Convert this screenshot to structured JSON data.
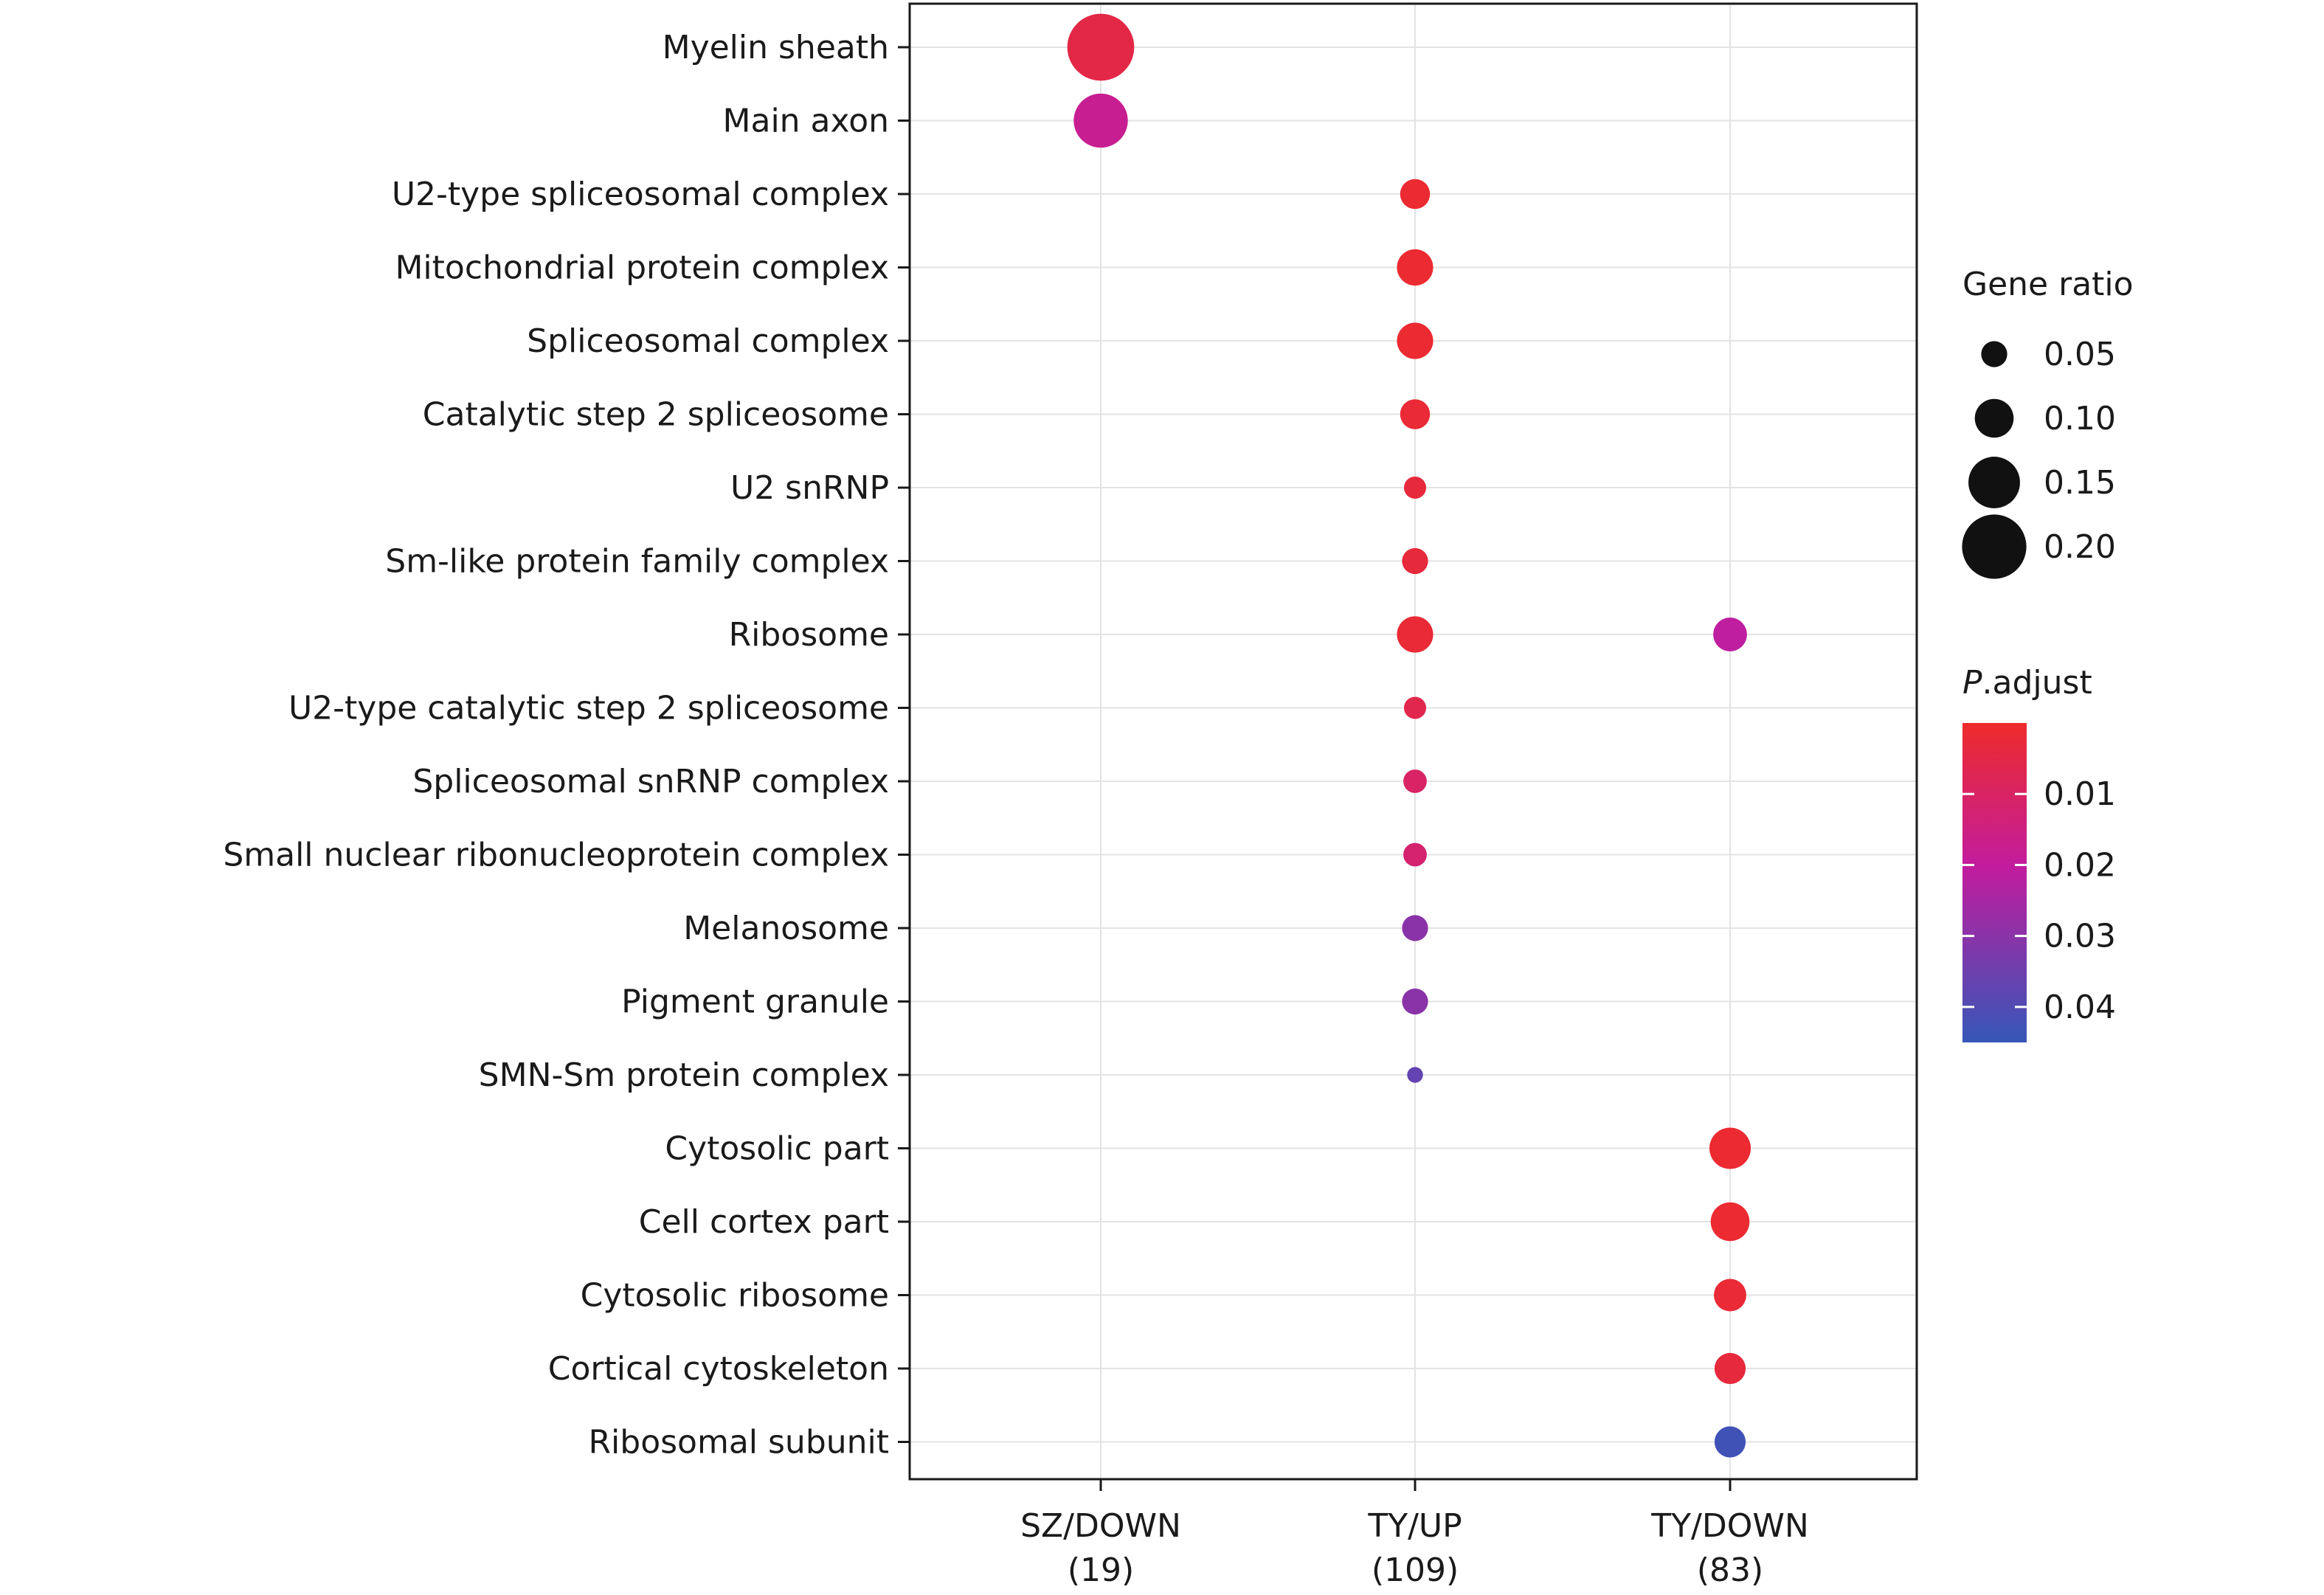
{
  "chart_data": {
    "type": "scatter",
    "title": "",
    "xlabel": "",
    "ylabel": "",
    "x_categories": [
      {
        "label": "SZ/DOWN",
        "count": "(19)"
      },
      {
        "label": "TY/UP",
        "count": "(109)"
      },
      {
        "label": "TY/DOWN",
        "count": "(83)"
      }
    ],
    "y_categories": [
      "Myelin sheath",
      "Main axon",
      "U2-type spliceosomal complex",
      "Mitochondrial protein complex",
      "Spliceosomal complex",
      "Catalytic step 2 spliceosome",
      "U2 snRNP",
      "Sm-like protein family complex",
      "Ribosome",
      "U2-type catalytic step 2 spliceosome",
      "Spliceosomal snRNP complex",
      "Small nuclear ribonucleoprotein complex",
      "Melanosome",
      "Pigment granule",
      "SMN-Sm protein complex",
      "Cytosolic part",
      "Cell cortex part",
      "Cytosolic ribosome",
      "Cortical cytoskeleton",
      "Ribosomal subunit"
    ],
    "points": [
      {
        "x": "SZ/DOWN",
        "y": "Myelin sheath",
        "gene_ratio": 0.21,
        "p_adjust": 0.005
      },
      {
        "x": "SZ/DOWN",
        "y": "Main axon",
        "gene_ratio": 0.16,
        "p_adjust": 0.018
      },
      {
        "x": "TY/UP",
        "y": "U2-type spliceosomal complex",
        "gene_ratio": 0.065,
        "p_adjust": 0.001
      },
      {
        "x": "TY/UP",
        "y": "Mitochondrial protein complex",
        "gene_ratio": 0.09,
        "p_adjust": 0.001
      },
      {
        "x": "TY/UP",
        "y": "Spliceosomal complex",
        "gene_ratio": 0.09,
        "p_adjust": 0.001
      },
      {
        "x": "TY/UP",
        "y": "Catalytic step 2 spliceosome",
        "gene_ratio": 0.065,
        "p_adjust": 0.002
      },
      {
        "x": "TY/UP",
        "y": "U2 snRNP",
        "gene_ratio": 0.035,
        "p_adjust": 0.003
      },
      {
        "x": "TY/UP",
        "y": "Sm-like protein family complex",
        "gene_ratio": 0.05,
        "p_adjust": 0.003
      },
      {
        "x": "TY/UP",
        "y": "Ribosome",
        "gene_ratio": 0.09,
        "p_adjust": 0.002
      },
      {
        "x": "TY/UP",
        "y": "U2-type catalytic step 2 spliceosome",
        "gene_ratio": 0.035,
        "p_adjust": 0.006
      },
      {
        "x": "TY/UP",
        "y": "Spliceosomal snRNP complex",
        "gene_ratio": 0.04,
        "p_adjust": 0.01
      },
      {
        "x": "TY/UP",
        "y": "Small nuclear ribonucleoprotein complex",
        "gene_ratio": 0.04,
        "p_adjust": 0.012
      },
      {
        "x": "TY/UP",
        "y": "Melanosome",
        "gene_ratio": 0.05,
        "p_adjust": 0.03
      },
      {
        "x": "TY/UP",
        "y": "Pigment granule",
        "gene_ratio": 0.05,
        "p_adjust": 0.03
      },
      {
        "x": "TY/UP",
        "y": "SMN-Sm protein complex",
        "gene_ratio": 0.01,
        "p_adjust": 0.037
      },
      {
        "x": "TY/DOWN",
        "y": "Ribosome",
        "gene_ratio": 0.08,
        "p_adjust": 0.021
      },
      {
        "x": "TY/DOWN",
        "y": "Cytosolic part",
        "gene_ratio": 0.11,
        "p_adjust": 0.001
      },
      {
        "x": "TY/DOWN",
        "y": "Cell cortex part",
        "gene_ratio": 0.1,
        "p_adjust": 0.001
      },
      {
        "x": "TY/DOWN",
        "y": "Cytosolic ribosome",
        "gene_ratio": 0.075,
        "p_adjust": 0.002
      },
      {
        "x": "TY/DOWN",
        "y": "Cortical cytoskeleton",
        "gene_ratio": 0.07,
        "p_adjust": 0.003
      },
      {
        "x": "TY/DOWN",
        "y": "Ribosomal subunit",
        "gene_ratio": 0.07,
        "p_adjust": 0.043
      }
    ],
    "size_legend": {
      "title": "Gene ratio",
      "values": [
        0.05,
        0.1,
        0.15,
        0.2
      ],
      "labels": [
        "0.05",
        "0.10",
        "0.15",
        "0.20"
      ]
    },
    "color_legend": {
      "title_italic": "P",
      "title_rest": ".adjust",
      "range": [
        0.0,
        0.045
      ],
      "ticks": [
        0.01,
        0.02,
        0.03,
        0.04
      ],
      "tick_labels": [
        "0.01",
        "0.02",
        "0.03",
        "0.04"
      ],
      "color_low": "#ee2b2b",
      "color_mid": "#c21c9e",
      "color_high": "#3557b8"
    },
    "grid": true,
    "legend_position": "right"
  }
}
